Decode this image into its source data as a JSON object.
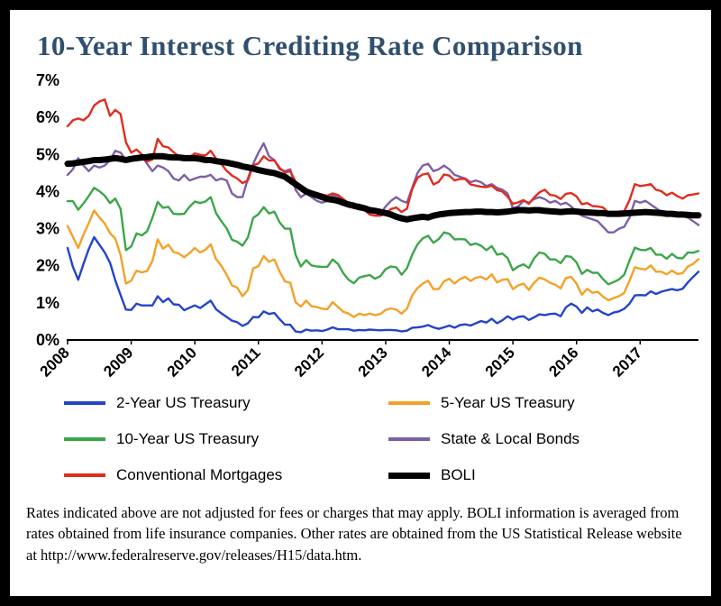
{
  "title_color": "#31506F",
  "footnote": "Rates indicated above are not adjusted for fees or charges that may apply.  BOLI information is averaged from rates obtained from life insurance companies.  Other rates are obtained from the US Statistical Release website at http://www.federalreserve.gov/releases/H15/data.htm.",
  "chart_data": {
    "type": "line",
    "title": "10-Year Interest Crediting Rate Comparison",
    "x_tick_labels": [
      "2008",
      "2009",
      "2010",
      "2011",
      "2012",
      "2013",
      "2014",
      "2015",
      "2016",
      "2017"
    ],
    "points_per_year": 12,
    "y_ticks": [
      "0%",
      "1%",
      "2%",
      "3%",
      "4%",
      "5%",
      "6%",
      "7%"
    ],
    "ylim": [
      0,
      7
    ],
    "grid": false,
    "legend_position": "bottom",
    "series": [
      {
        "name": "2-Year US Treasury",
        "color": "#2444C8",
        "width": 2.4,
        "values": [
          2.48,
          1.97,
          1.62,
          2.05,
          2.45,
          2.77,
          2.57,
          2.36,
          2.08,
          1.61,
          1.21,
          0.82,
          0.81,
          0.98,
          0.93,
          0.93,
          0.93,
          1.18,
          1.02,
          1.12,
          0.96,
          0.95,
          0.8,
          0.87,
          0.93,
          0.86,
          0.96,
          1.06,
          0.83,
          0.72,
          0.62,
          0.52,
          0.48,
          0.38,
          0.45,
          0.62,
          0.61,
          0.77,
          0.7,
          0.73,
          0.56,
          0.41,
          0.41,
          0.23,
          0.21,
          0.28,
          0.25,
          0.26,
          0.24,
          0.28,
          0.34,
          0.29,
          0.29,
          0.29,
          0.25,
          0.27,
          0.26,
          0.28,
          0.27,
          0.26,
          0.27,
          0.27,
          0.26,
          0.23,
          0.25,
          0.33,
          0.34,
          0.36,
          0.4,
          0.34,
          0.3,
          0.34,
          0.39,
          0.33,
          0.4,
          0.42,
          0.39,
          0.45,
          0.51,
          0.47,
          0.57,
          0.45,
          0.53,
          0.64,
          0.55,
          0.62,
          0.64,
          0.54,
          0.61,
          0.69,
          0.67,
          0.7,
          0.71,
          0.64,
          0.88,
          0.98,
          0.9,
          0.73,
          0.88,
          0.77,
          0.82,
          0.73,
          0.67,
          0.74,
          0.77,
          0.84,
          0.98,
          1.2,
          1.21,
          1.2,
          1.31,
          1.24,
          1.3,
          1.34,
          1.37,
          1.34,
          1.38,
          1.55,
          1.7,
          1.84
        ]
      },
      {
        "name": "5-Year US Treasury",
        "color": "#F4A127",
        "width": 2.4,
        "values": [
          3.07,
          2.78,
          2.48,
          2.84,
          3.15,
          3.49,
          3.3,
          3.14,
          2.88,
          2.73,
          2.29,
          1.52,
          1.6,
          1.87,
          1.82,
          1.86,
          2.13,
          2.71,
          2.46,
          2.57,
          2.37,
          2.33,
          2.23,
          2.34,
          2.48,
          2.36,
          2.43,
          2.58,
          2.18,
          2.0,
          1.76,
          1.47,
          1.41,
          1.18,
          1.35,
          1.93,
          1.99,
          2.26,
          2.11,
          2.17,
          1.84,
          1.58,
          1.54,
          1.02,
          0.9,
          1.06,
          0.91,
          0.89,
          0.84,
          0.83,
          1.02,
          0.89,
          0.76,
          0.71,
          0.62,
          0.71,
          0.67,
          0.71,
          0.67,
          0.7,
          0.81,
          0.85,
          0.82,
          0.71,
          0.84,
          1.2,
          1.4,
          1.52,
          1.6,
          1.37,
          1.37,
          1.58,
          1.65,
          1.52,
          1.64,
          1.7,
          1.59,
          1.68,
          1.7,
          1.63,
          1.77,
          1.55,
          1.62,
          1.64,
          1.37,
          1.47,
          1.52,
          1.35,
          1.54,
          1.68,
          1.63,
          1.54,
          1.49,
          1.39,
          1.67,
          1.7,
          1.52,
          1.22,
          1.38,
          1.27,
          1.3,
          1.17,
          1.07,
          1.13,
          1.18,
          1.27,
          1.6,
          1.96,
          1.92,
          1.9,
          2.01,
          1.84,
          1.84,
          1.77,
          1.87,
          1.78,
          1.8,
          1.98,
          2.05,
          2.18
        ]
      },
      {
        "name": "10-Year US Treasury",
        "color": "#3BA649",
        "width": 2.4,
        "values": [
          3.74,
          3.74,
          3.51,
          3.68,
          3.88,
          4.1,
          4.01,
          3.89,
          3.69,
          3.81,
          3.53,
          2.42,
          2.52,
          2.87,
          2.82,
          2.93,
          3.29,
          3.72,
          3.56,
          3.59,
          3.4,
          3.39,
          3.4,
          3.59,
          3.73,
          3.69,
          3.73,
          3.85,
          3.42,
          3.2,
          3.01,
          2.7,
          2.65,
          2.54,
          2.76,
          3.29,
          3.39,
          3.58,
          3.41,
          3.46,
          3.17,
          3.0,
          3.0,
          2.3,
          1.98,
          2.15,
          2.01,
          1.98,
          1.97,
          1.97,
          2.17,
          2.05,
          1.8,
          1.62,
          1.53,
          1.68,
          1.72,
          1.75,
          1.65,
          1.72,
          1.91,
          1.98,
          1.96,
          1.76,
          1.93,
          2.3,
          2.58,
          2.74,
          2.81,
          2.62,
          2.72,
          2.9,
          2.86,
          2.71,
          2.72,
          2.71,
          2.56,
          2.6,
          2.54,
          2.42,
          2.53,
          2.3,
          2.33,
          2.21,
          1.88,
          1.98,
          2.04,
          1.94,
          2.2,
          2.36,
          2.32,
          2.17,
          2.17,
          2.07,
          2.26,
          2.24,
          2.09,
          1.78,
          1.89,
          1.81,
          1.81,
          1.64,
          1.5,
          1.56,
          1.63,
          1.76,
          2.14,
          2.49,
          2.43,
          2.42,
          2.48,
          2.3,
          2.3,
          2.19,
          2.32,
          2.21,
          2.2,
          2.36,
          2.35,
          2.4
        ]
      },
      {
        "name": "State & Local Bonds",
        "color": "#7D5FA6",
        "width": 2.4,
        "values": [
          4.45,
          4.6,
          4.9,
          4.7,
          4.55,
          4.7,
          4.65,
          4.7,
          4.85,
          5.1,
          5.05,
          4.85,
          4.9,
          4.85,
          4.95,
          4.75,
          4.55,
          4.7,
          4.65,
          4.55,
          4.35,
          4.3,
          4.45,
          4.3,
          4.35,
          4.4,
          4.4,
          4.45,
          4.3,
          4.35,
          4.3,
          3.95,
          3.85,
          3.85,
          4.35,
          4.75,
          5.05,
          5.3,
          4.95,
          4.85,
          4.6,
          4.55,
          4.6,
          4.05,
          3.85,
          3.95,
          3.85,
          3.75,
          3.7,
          3.75,
          3.9,
          3.85,
          3.75,
          3.7,
          3.6,
          3.65,
          3.6,
          3.55,
          3.45,
          3.4,
          3.6,
          3.75,
          3.85,
          3.75,
          3.7,
          4.1,
          4.5,
          4.7,
          4.75,
          4.55,
          4.6,
          4.7,
          4.6,
          4.45,
          4.4,
          4.35,
          4.25,
          4.3,
          4.25,
          4.15,
          4.2,
          4.1,
          4.05,
          3.95,
          3.55,
          3.6,
          3.75,
          3.7,
          3.8,
          3.85,
          3.8,
          3.7,
          3.75,
          3.65,
          3.7,
          3.6,
          3.45,
          3.35,
          3.3,
          3.25,
          3.2,
          3.05,
          2.9,
          2.9,
          3.0,
          3.05,
          3.3,
          3.75,
          3.7,
          3.75,
          3.65,
          3.55,
          3.45,
          3.4,
          3.45,
          3.4,
          3.35,
          3.3,
          3.2,
          3.1
        ]
      },
      {
        "name": "Conventional Mortgages",
        "color": "#E32B1E",
        "width": 2.4,
        "values": [
          5.76,
          5.92,
          5.97,
          5.92,
          6.04,
          6.32,
          6.43,
          6.48,
          6.04,
          6.2,
          6.09,
          5.33,
          5.05,
          5.13,
          5.0,
          4.81,
          4.86,
          5.42,
          5.22,
          5.19,
          5.06,
          4.95,
          4.88,
          4.93,
          5.03,
          4.99,
          4.97,
          5.1,
          4.89,
          4.74,
          4.56,
          4.43,
          4.35,
          4.23,
          4.3,
          4.71,
          4.76,
          4.95,
          4.84,
          4.84,
          4.64,
          4.51,
          4.55,
          4.27,
          4.11,
          4.07,
          3.99,
          3.96,
          3.92,
          3.89,
          3.95,
          3.91,
          3.8,
          3.68,
          3.55,
          3.6,
          3.5,
          3.38,
          3.35,
          3.35,
          3.41,
          3.53,
          3.57,
          3.45,
          3.54,
          4.07,
          4.37,
          4.46,
          4.49,
          4.19,
          4.26,
          4.46,
          4.43,
          4.3,
          4.34,
          4.34,
          4.19,
          4.16,
          4.13,
          4.12,
          4.16,
          4.04,
          4.0,
          3.86,
          3.67,
          3.71,
          3.77,
          3.67,
          3.84,
          3.98,
          4.05,
          3.91,
          3.89,
          3.8,
          3.94,
          3.96,
          3.87,
          3.66,
          3.69,
          3.61,
          3.6,
          3.57,
          3.44,
          3.44,
          3.46,
          3.47,
          3.77,
          4.2,
          4.15,
          4.17,
          4.2,
          4.05,
          4.01,
          3.9,
          3.97,
          3.88,
          3.81,
          3.9,
          3.92,
          3.95
        ]
      },
      {
        "name": "BOLI",
        "color": "#000000",
        "width": 7,
        "values": [
          4.75,
          4.76,
          4.78,
          4.8,
          4.82,
          4.85,
          4.85,
          4.86,
          4.88,
          4.9,
          4.88,
          4.85,
          4.88,
          4.9,
          4.92,
          4.93,
          4.95,
          4.95,
          4.95,
          4.93,
          4.92,
          4.92,
          4.9,
          4.9,
          4.9,
          4.88,
          4.85,
          4.85,
          4.82,
          4.8,
          4.78,
          4.75,
          4.72,
          4.68,
          4.65,
          4.62,
          4.58,
          4.55,
          4.52,
          4.5,
          4.45,
          4.4,
          4.3,
          4.2,
          4.1,
          4.0,
          3.95,
          3.9,
          3.85,
          3.8,
          3.78,
          3.75,
          3.7,
          3.65,
          3.62,
          3.58,
          3.55,
          3.5,
          3.48,
          3.45,
          3.42,
          3.38,
          3.32,
          3.28,
          3.25,
          3.28,
          3.3,
          3.32,
          3.3,
          3.35,
          3.38,
          3.4,
          3.42,
          3.43,
          3.44,
          3.45,
          3.45,
          3.46,
          3.46,
          3.45,
          3.45,
          3.44,
          3.45,
          3.46,
          3.48,
          3.5,
          3.5,
          3.49,
          3.5,
          3.5,
          3.48,
          3.47,
          3.46,
          3.45,
          3.46,
          3.47,
          3.46,
          3.45,
          3.44,
          3.43,
          3.42,
          3.42,
          3.4,
          3.4,
          3.4,
          3.41,
          3.42,
          3.43,
          3.44,
          3.45,
          3.44,
          3.43,
          3.42,
          3.4,
          3.4,
          3.38,
          3.38,
          3.37,
          3.36,
          3.36
        ]
      }
    ]
  }
}
